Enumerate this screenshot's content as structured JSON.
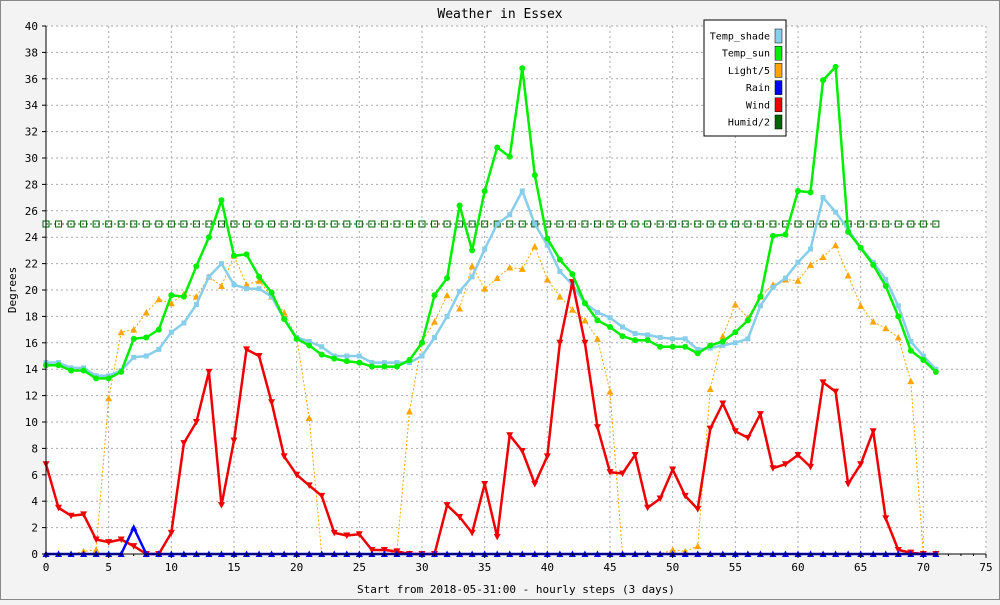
{
  "chart_data": {
    "type": "line",
    "title": "Weather in Essex",
    "xlabel": "Start from 2018-05-31:00 - hourly steps (3 days)",
    "ylabel": "Degrees",
    "xlim": [
      0,
      75
    ],
    "ylim": [
      0,
      40
    ],
    "xticks": [
      "0",
      "5",
      "10",
      "15",
      "20",
      "25",
      "30",
      "35",
      "40",
      "45",
      "50",
      "55",
      "60",
      "65",
      "70",
      "75"
    ],
    "yticks": [
      "0",
      "2",
      "4",
      "6",
      "8",
      "10",
      "12",
      "14",
      "16",
      "18",
      "20",
      "22",
      "24",
      "26",
      "28",
      "30",
      "32",
      "34",
      "36",
      "38",
      "40"
    ],
    "grid": true,
    "legend_position": "top-right",
    "series": [
      {
        "name": "Temp_shade",
        "color": "#87ceeb",
        "marker": "square",
        "dash": false,
        "values": [
          14.5,
          14.5,
          14.1,
          14.1,
          13.5,
          13.5,
          13.9,
          14.9,
          15.0,
          15.5,
          16.8,
          17.5,
          18.9,
          21.0,
          22.0,
          20.4,
          20.1,
          20.1,
          19.5,
          17.8,
          16.4,
          16.1,
          15.7,
          15.0,
          15.0,
          15.0,
          14.5,
          14.5,
          14.5,
          14.5,
          15.0,
          16.4,
          18.0,
          19.9,
          21.0,
          23.1,
          25.0,
          25.7,
          27.5,
          25.0,
          23.4,
          21.4,
          20.4,
          19.0,
          18.3,
          17.9,
          17.2,
          16.7,
          16.6,
          16.4,
          16.3,
          16.3,
          15.5,
          15.6,
          15.8,
          16.0,
          16.3,
          18.8,
          20.2,
          20.9,
          22.1,
          23.1,
          27.0,
          25.9,
          24.6,
          23.2,
          22.1,
          20.8,
          18.8,
          16.1,
          15.0,
          14.0
        ]
      },
      {
        "name": "Temp_sun",
        "color": "#00ee00",
        "marker": "circle",
        "dash": false,
        "values": [
          14.3,
          14.3,
          13.9,
          13.9,
          13.3,
          13.3,
          13.8,
          16.3,
          16.4,
          17.0,
          19.6,
          19.5,
          21.8,
          24.0,
          26.8,
          22.6,
          22.7,
          21.0,
          19.8,
          17.8,
          16.3,
          15.8,
          15.1,
          14.8,
          14.6,
          14.5,
          14.2,
          14.2,
          14.2,
          14.7,
          16.0,
          19.6,
          20.9,
          26.4,
          23.0,
          27.5,
          30.8,
          30.1,
          36.8,
          28.7,
          23.9,
          22.3,
          21.2,
          19.0,
          17.7,
          17.2,
          16.5,
          16.2,
          16.2,
          15.7,
          15.7,
          15.7,
          15.2,
          15.8,
          16.1,
          16.8,
          17.7,
          19.5,
          24.1,
          24.2,
          27.5,
          27.4,
          35.9,
          36.9,
          24.4,
          23.2,
          21.9,
          20.3,
          18.0,
          15.4,
          14.7,
          13.8
        ]
      },
      {
        "name": "Light/5",
        "color": "#ffa500",
        "marker": "triangle-up",
        "dash": true,
        "values": [
          0.0,
          0.0,
          0.0,
          0.2,
          0.3,
          11.8,
          16.8,
          17.0,
          18.3,
          19.3,
          19.0,
          19.7,
          19.5,
          21.0,
          20.3,
          22.6,
          20.4,
          20.7,
          19.5,
          18.3,
          16.4,
          10.3,
          0.0,
          0.0,
          0.0,
          0.0,
          0.0,
          0.0,
          0.2,
          10.8,
          16.1,
          17.6,
          19.6,
          18.6,
          21.8,
          20.1,
          20.9,
          21.7,
          21.6,
          23.3,
          20.8,
          19.5,
          18.5,
          17.7,
          16.3,
          12.3,
          0.0,
          0.0,
          0.0,
          0.0,
          0.3,
          0.2,
          0.6,
          12.5,
          16.5,
          18.9,
          17.9,
          19.5,
          20.4,
          20.8,
          20.7,
          21.9,
          22.5,
          23.4,
          21.1,
          18.8,
          17.6,
          17.1,
          16.4,
          13.1,
          0.0,
          0.0
        ]
      },
      {
        "name": "Rain",
        "color": "#0000ff",
        "marker": "triangle-up",
        "dash": false,
        "values": [
          0,
          0,
          0,
          0,
          0,
          0,
          0,
          2.0,
          0,
          0,
          0,
          0,
          0,
          0,
          0,
          0,
          0,
          0,
          0,
          0,
          0,
          0,
          0,
          0,
          0,
          0,
          0,
          0,
          0,
          0,
          0,
          0,
          0,
          0,
          0,
          0,
          0,
          0,
          0,
          0,
          0,
          0,
          0,
          0,
          0,
          0,
          0,
          0,
          0,
          0,
          0,
          0,
          0,
          0,
          0,
          0,
          0,
          0,
          0,
          0,
          0,
          0,
          0,
          0,
          0,
          0,
          0,
          0,
          0,
          0,
          0,
          0
        ]
      },
      {
        "name": "Wind",
        "color": "#ee0000",
        "marker": "triangle-down",
        "dash": false,
        "values": [
          6.8,
          3.5,
          2.9,
          3.0,
          1.1,
          0.9,
          1.1,
          0.6,
          0.0,
          0.0,
          1.6,
          8.4,
          10.0,
          13.8,
          3.7,
          8.6,
          15.5,
          15.0,
          11.5,
          7.4,
          6.0,
          5.2,
          4.4,
          1.6,
          1.4,
          1.5,
          0.3,
          0.3,
          0.2,
          0.0,
          0.0,
          0.0,
          3.7,
          2.8,
          1.6,
          5.3,
          1.3,
          9.0,
          7.8,
          5.3,
          7.4,
          16.0,
          20.6,
          16.0,
          9.6,
          6.2,
          6.1,
          7.5,
          3.5,
          4.2,
          6.4,
          4.4,
          3.4,
          9.5,
          11.4,
          9.3,
          8.8,
          10.6,
          6.5,
          6.8,
          7.5,
          6.6,
          13.0,
          12.3,
          5.3,
          6.8,
          9.3,
          2.7,
          0.3,
          0.1,
          0.0,
          0.0
        ]
      },
      {
        "name": "Humid/2",
        "color": "#006400",
        "marker": "square-open",
        "dash": true,
        "values": [
          25,
          25,
          25,
          25,
          25,
          25,
          25,
          25,
          25,
          25,
          25,
          25,
          25,
          25,
          25,
          25,
          25,
          25,
          25,
          25,
          25,
          25,
          25,
          25,
          25,
          25,
          25,
          25,
          25,
          25,
          25,
          25,
          25,
          25,
          25,
          25,
          25,
          25,
          25,
          25,
          25,
          25,
          25,
          25,
          25,
          25,
          25,
          25,
          25,
          25,
          25,
          25,
          25,
          25,
          25,
          25,
          25,
          25,
          25,
          25,
          25,
          25,
          25,
          25,
          25,
          25,
          25,
          25,
          25,
          25,
          25,
          25
        ]
      }
    ]
  }
}
